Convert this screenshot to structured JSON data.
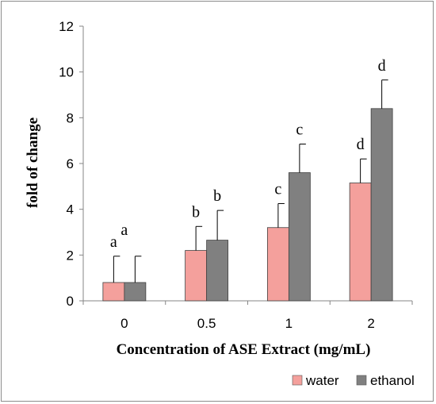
{
  "chart_data": {
    "type": "bar",
    "categories": [
      "0",
      "0.5",
      "1",
      "2"
    ],
    "series": [
      {
        "name": "water",
        "color": "#f4a09c",
        "values": [
          0.8,
          2.2,
          3.2,
          5.15
        ],
        "errors": [
          1.15,
          1.05,
          1.05,
          1.05
        ],
        "labels": [
          "a",
          "b",
          "c",
          "d"
        ]
      },
      {
        "name": "ethanol",
        "color": "#808080",
        "values": [
          0.8,
          2.65,
          5.6,
          8.4
        ],
        "errors": [
          1.15,
          1.3,
          1.25,
          1.25
        ],
        "labels": [
          "",
          "b",
          "c",
          "d"
        ]
      }
    ],
    "group_labels": [
      "a",
      "",
      "",
      ""
    ],
    "xlabel": "Concentration of ASE Extract (mg/mL)",
    "ylabel": "fold of change",
    "ylim": [
      0,
      12
    ],
    "yticks": [
      0,
      2,
      4,
      6,
      8,
      10,
      12
    ],
    "grid": false,
    "legend_position": "bottom-right"
  }
}
